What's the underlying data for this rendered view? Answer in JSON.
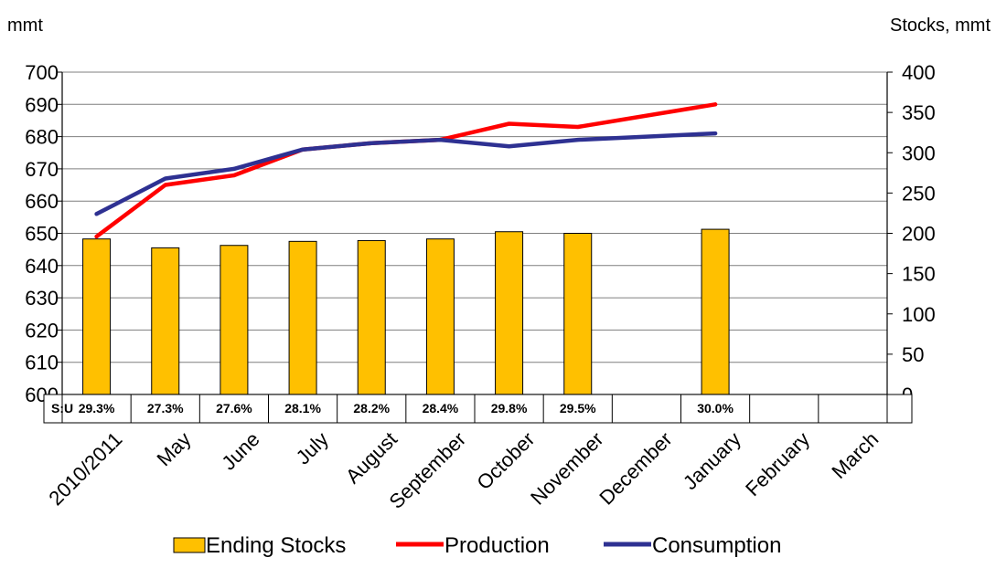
{
  "chart_data": {
    "type": "bar",
    "left_axis_unit": "mmt",
    "right_axis_unit": "Stocks, mmt",
    "categories": [
      "2010/2011",
      "May",
      "June",
      "July",
      "August",
      "September",
      "October",
      "November",
      "December",
      "January",
      "February",
      "March"
    ],
    "left_ylim": [
      600,
      700
    ],
    "left_ticks": [
      "600",
      "610",
      "620",
      "630",
      "640",
      "650",
      "660",
      "670",
      "680",
      "690",
      "700"
    ],
    "right_ylim": [
      0,
      400
    ],
    "right_ticks": [
      "0",
      "50",
      "100",
      "150",
      "200",
      "250",
      "300",
      "350",
      "400"
    ],
    "grid": true,
    "legend_position": "bottom",
    "su_label": "S:U",
    "su_ratios": [
      "29.3%",
      "27.3%",
      "27.6%",
      "28.1%",
      "28.2%",
      "28.4%",
      "29.8%",
      "29.5%",
      "",
      "30.0%",
      "",
      ""
    ],
    "series": [
      {
        "name": "Ending Stocks",
        "kind": "bar",
        "axis": "right",
        "color": "#FFC000",
        "values": [
          193,
          182,
          185,
          190,
          191,
          193,
          202,
          200,
          null,
          205,
          null,
          null
        ]
      },
      {
        "name": "Production",
        "kind": "line",
        "axis": "left",
        "color": "#FF0000",
        "values": [
          649,
          665,
          668,
          676,
          678,
          679,
          684,
          683,
          null,
          690,
          null,
          null
        ]
      },
      {
        "name": "Consumption",
        "kind": "line",
        "axis": "left",
        "color": "#2E3192",
        "values": [
          656,
          667,
          670,
          676,
          678,
          679,
          677,
          679,
          null,
          681,
          null,
          null
        ]
      }
    ]
  }
}
